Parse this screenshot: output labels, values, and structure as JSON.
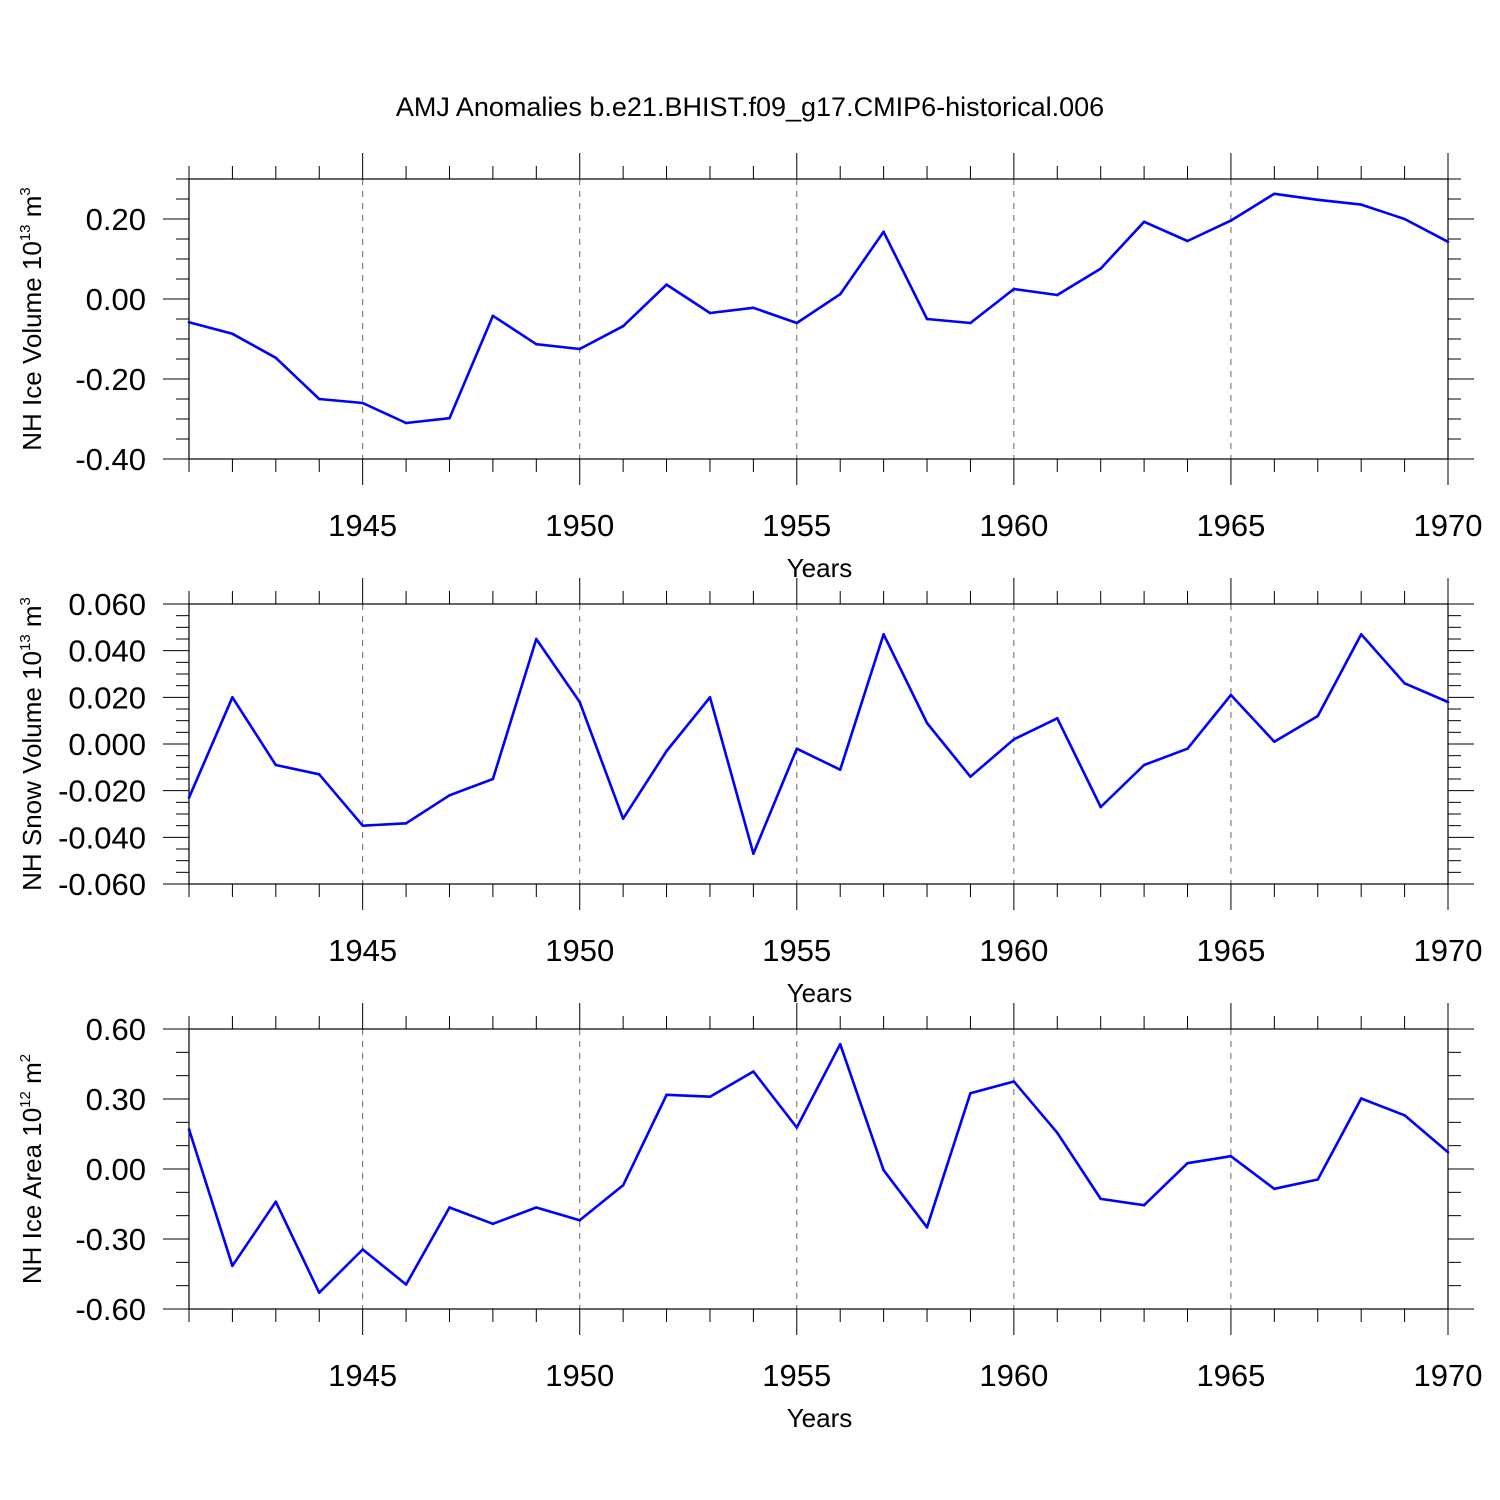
{
  "title": "AMJ Anomalies b.e21.BHIST.f09_g17.CMIP6-historical.006",
  "chart_data": [
    {
      "type": "line",
      "name": "ice-volume",
      "ylabel": "NH Ice Volume 10",
      "ylabel_sup": "13",
      "ylabel_unit": " m",
      "ylabel_unit_sup": "3",
      "xlabel": "Years",
      "xlim": [
        1941,
        1970
      ],
      "ylim": [
        -0.4,
        0.3
      ],
      "yticks": [
        -0.4,
        -0.2,
        0.0,
        0.2
      ],
      "ytick_labels": [
        "-0.40",
        "-0.20",
        "0.00",
        "0.20"
      ],
      "yminor_step": 0.05,
      "xticks": [
        1945,
        1950,
        1955,
        1960,
        1965,
        1970
      ],
      "xtick_labels": [
        "1945",
        "1950",
        "1955",
        "1960",
        "1965",
        "1970"
      ],
      "grid_x": [
        1945,
        1950,
        1955,
        1960,
        1965
      ],
      "line_color": "#0000ff",
      "x": [
        1941,
        1942,
        1943,
        1944,
        1945,
        1946,
        1947,
        1948,
        1949,
        1950,
        1951,
        1952,
        1953,
        1954,
        1955,
        1956,
        1957,
        1958,
        1959,
        1960,
        1961,
        1962,
        1963,
        1964,
        1965,
        1966,
        1967,
        1968,
        1969,
        1970
      ],
      "values": [
        -0.058,
        -0.087,
        -0.147,
        -0.25,
        -0.26,
        -0.31,
        -0.298,
        -0.042,
        -0.113,
        -0.125,
        -0.068,
        0.036,
        -0.035,
        -0.022,
        -0.06,
        0.012,
        0.168,
        -0.05,
        -0.06,
        0.025,
        0.01,
        0.076,
        0.193,
        0.145,
        0.196,
        0.263,
        0.248,
        0.236,
        0.2,
        0.143
      ]
    },
    {
      "type": "line",
      "name": "snow-volume",
      "ylabel": "NH Snow Volume 10",
      "ylabel_sup": "13",
      "ylabel_unit": " m",
      "ylabel_unit_sup": "3",
      "xlabel": "Years",
      "xlim": [
        1941,
        1970
      ],
      "ylim": [
        -0.06,
        0.06
      ],
      "yticks": [
        -0.06,
        -0.04,
        -0.02,
        0.0,
        0.02,
        0.04,
        0.06
      ],
      "ytick_labels": [
        "-0.060",
        "-0.040",
        "-0.020",
        "0.000",
        "0.020",
        "0.040",
        "0.060"
      ],
      "yminor_step": 0.005,
      "xticks": [
        1945,
        1950,
        1955,
        1960,
        1965,
        1970
      ],
      "xtick_labels": [
        "1945",
        "1950",
        "1955",
        "1960",
        "1965",
        "1970"
      ],
      "grid_x": [
        1945,
        1950,
        1955,
        1960,
        1965
      ],
      "line_color": "#0000ff",
      "x": [
        1941,
        1942,
        1943,
        1944,
        1945,
        1946,
        1947,
        1948,
        1949,
        1950,
        1951,
        1952,
        1953,
        1954,
        1955,
        1956,
        1957,
        1958,
        1959,
        1960,
        1961,
        1962,
        1963,
        1964,
        1965,
        1966,
        1967,
        1968,
        1969,
        1970
      ],
      "values": [
        -0.023,
        0.02,
        -0.009,
        -0.013,
        -0.035,
        -0.034,
        -0.022,
        -0.015,
        0.045,
        0.018,
        -0.032,
        -0.003,
        0.02,
        -0.047,
        -0.002,
        -0.011,
        0.047,
        0.009,
        -0.014,
        0.002,
        0.011,
        -0.027,
        -0.009,
        -0.002,
        0.021,
        0.001,
        0.012,
        0.047,
        0.026,
        0.018
      ]
    },
    {
      "type": "line",
      "name": "ice-area",
      "ylabel": "NH Ice Area 10",
      "ylabel_sup": "12",
      "ylabel_unit": " m",
      "ylabel_unit_sup": "2",
      "xlabel": "Years",
      "xlim": [
        1941,
        1970
      ],
      "ylim": [
        -0.6,
        0.6
      ],
      "yticks": [
        -0.6,
        -0.3,
        0.0,
        0.3,
        0.6
      ],
      "ytick_labels": [
        "-0.60",
        "-0.30",
        "0.00",
        "0.30",
        "0.60"
      ],
      "yminor_step": 0.1,
      "xticks": [
        1945,
        1950,
        1955,
        1960,
        1965,
        1970
      ],
      "xtick_labels": [
        "1945",
        "1950",
        "1955",
        "1960",
        "1965",
        "1970"
      ],
      "grid_x": [
        1945,
        1950,
        1955,
        1960,
        1965
      ],
      "line_color": "#0000ff",
      "x": [
        1941,
        1942,
        1943,
        1944,
        1945,
        1946,
        1947,
        1948,
        1949,
        1950,
        1951,
        1952,
        1953,
        1954,
        1955,
        1956,
        1957,
        1958,
        1959,
        1960,
        1961,
        1962,
        1963,
        1964,
        1965,
        1966,
        1967,
        1968,
        1969,
        1970
      ],
      "values": [
        0.17,
        -0.415,
        -0.14,
        -0.53,
        -0.345,
        -0.495,
        -0.165,
        -0.235,
        -0.165,
        -0.22,
        -0.07,
        0.318,
        0.31,
        0.418,
        0.178,
        0.535,
        -0.005,
        -0.25,
        0.325,
        0.375,
        0.155,
        -0.128,
        -0.155,
        0.025,
        0.055,
        -0.085,
        -0.045,
        0.302,
        0.23,
        0.072
      ]
    }
  ]
}
